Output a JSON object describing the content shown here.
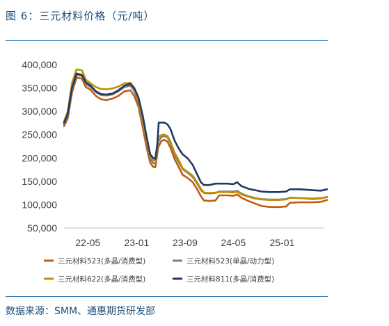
{
  "figure": {
    "title": "图 6：三元材料价格（元/吨）",
    "source": "数据来源：SMM、通惠期货研发部"
  },
  "chart_data": {
    "type": "line",
    "title": "三元材料价格（元/吨）",
    "xlabel": "",
    "ylabel": "",
    "ylim": [
      50000,
      400000
    ],
    "yticks": [
      50000,
      100000,
      150000,
      200000,
      250000,
      300000,
      350000,
      400000
    ],
    "ytick_labels": [
      "50,000",
      "100,000",
      "150,000",
      "200,000",
      "250,000",
      "300,000",
      "350,000",
      "400,000"
    ],
    "x_range": [
      "2022-01",
      "2025-08"
    ],
    "xtick_labels": [
      "22-05",
      "23-01",
      "23-09",
      "24-05",
      "25-01"
    ],
    "xtick_dates": [
      "2022-05",
      "2023-01",
      "2023-09",
      "2024-05",
      "2025-01"
    ],
    "grid": false,
    "legend_position": "bottom",
    "series": [
      {
        "name": "三元材料523(多晶/消费型)",
        "color": "#c55a11",
        "points": [
          [
            "2022-01-01",
            268000
          ],
          [
            "2022-01-20",
            285000
          ],
          [
            "2022-02-10",
            340000
          ],
          [
            "2022-03-05",
            372000
          ],
          [
            "2022-04-01",
            370000
          ],
          [
            "2022-04-20",
            352000
          ],
          [
            "2022-05-15",
            346000
          ],
          [
            "2022-06-10",
            333000
          ],
          [
            "2022-07-05",
            326000
          ],
          [
            "2022-08-01",
            324000
          ],
          [
            "2022-09-01",
            327000
          ],
          [
            "2022-10-01",
            333000
          ],
          [
            "2022-11-01",
            343000
          ],
          [
            "2022-12-01",
            345000
          ],
          [
            "2022-12-20",
            333000
          ],
          [
            "2023-01-10",
            310000
          ],
          [
            "2023-02-01",
            265000
          ],
          [
            "2023-02-20",
            222000
          ],
          [
            "2023-03-10",
            190000
          ],
          [
            "2023-03-25",
            181000
          ],
          [
            "2023-04-05",
            180000
          ],
          [
            "2023-04-20",
            223000
          ],
          [
            "2023-05-05",
            236000
          ],
          [
            "2023-05-20",
            239000
          ],
          [
            "2023-06-05",
            235000
          ],
          [
            "2023-06-20",
            222000
          ],
          [
            "2023-07-10",
            198000
          ],
          [
            "2023-08-01",
            180000
          ],
          [
            "2023-08-20",
            164000
          ],
          [
            "2023-09-15",
            157000
          ],
          [
            "2023-10-10",
            148000
          ],
          [
            "2023-11-01",
            133000
          ],
          [
            "2023-11-20",
            118000
          ],
          [
            "2023-12-05",
            109000
          ],
          [
            "2024-01-01",
            108000
          ],
          [
            "2024-02-01",
            109000
          ],
          [
            "2024-02-20",
            120000
          ],
          [
            "2024-04-01",
            120000
          ],
          [
            "2024-05-01",
            119000
          ],
          [
            "2024-05-20",
            122000
          ],
          [
            "2024-06-10",
            115000
          ],
          [
            "2024-07-15",
            108000
          ],
          [
            "2024-08-20",
            102000
          ],
          [
            "2024-09-20",
            97000
          ],
          [
            "2024-11-01",
            95000
          ],
          [
            "2024-12-15",
            95000
          ],
          [
            "2025-01-20",
            96000
          ],
          [
            "2025-02-10",
            104000
          ],
          [
            "2025-04-01",
            105000
          ],
          [
            "2025-06-01",
            105000
          ],
          [
            "2025-07-15",
            106000
          ],
          [
            "2025-08-15",
            110000
          ]
        ]
      },
      {
        "name": "三元材料523(单晶/动力型)",
        "color": "#7f7f7f",
        "points": [
          [
            "2022-01-01",
            272000
          ],
          [
            "2022-01-20",
            290000
          ],
          [
            "2022-02-10",
            345000
          ],
          [
            "2022-03-05",
            378000
          ],
          [
            "2022-04-01",
            376000
          ],
          [
            "2022-04-20",
            358000
          ],
          [
            "2022-05-15",
            352000
          ],
          [
            "2022-06-10",
            341000
          ],
          [
            "2022-07-05",
            335000
          ],
          [
            "2022-08-01",
            334000
          ],
          [
            "2022-09-01",
            336000
          ],
          [
            "2022-10-01",
            343000
          ],
          [
            "2022-11-01",
            352000
          ],
          [
            "2022-12-01",
            355000
          ],
          [
            "2022-12-20",
            344000
          ],
          [
            "2023-01-10",
            320000
          ],
          [
            "2023-02-01",
            275000
          ],
          [
            "2023-02-20",
            232000
          ],
          [
            "2023-03-10",
            198000
          ],
          [
            "2023-03-25",
            189000
          ],
          [
            "2023-04-05",
            188000
          ],
          [
            "2023-04-20",
            235000
          ],
          [
            "2023-05-05",
            245000
          ],
          [
            "2023-05-20",
            247000
          ],
          [
            "2023-06-05",
            244000
          ],
          [
            "2023-06-20",
            232000
          ],
          [
            "2023-07-10",
            207000
          ],
          [
            "2023-08-01",
            190000
          ],
          [
            "2023-08-20",
            176000
          ],
          [
            "2023-09-15",
            168000
          ],
          [
            "2023-10-10",
            159000
          ],
          [
            "2023-11-01",
            145000
          ],
          [
            "2023-11-20",
            131000
          ],
          [
            "2023-12-05",
            125000
          ],
          [
            "2024-01-01",
            124000
          ],
          [
            "2024-02-01",
            125000
          ],
          [
            "2024-02-20",
            128000
          ],
          [
            "2024-04-01",
            128000
          ],
          [
            "2024-05-01",
            128000
          ],
          [
            "2024-05-20",
            130000
          ],
          [
            "2024-06-10",
            124000
          ],
          [
            "2024-07-15",
            118000
          ],
          [
            "2024-08-20",
            114000
          ],
          [
            "2024-09-20",
            112000
          ],
          [
            "2024-11-01",
            111000
          ],
          [
            "2024-12-15",
            111000
          ],
          [
            "2025-01-20",
            112000
          ],
          [
            "2025-02-10",
            115000
          ],
          [
            "2025-04-01",
            114000
          ],
          [
            "2025-06-01",
            113000
          ],
          [
            "2025-07-15",
            114000
          ],
          [
            "2025-08-15",
            116000
          ]
        ]
      },
      {
        "name": "三元材料622(多晶/消费型)",
        "color": "#bf9000",
        "points": [
          [
            "2022-01-01",
            278000
          ],
          [
            "2022-01-20",
            300000
          ],
          [
            "2022-02-10",
            360000
          ],
          [
            "2022-03-05",
            390000
          ],
          [
            "2022-04-01",
            388000
          ],
          [
            "2022-04-20",
            368000
          ],
          [
            "2022-05-15",
            360000
          ],
          [
            "2022-06-10",
            352000
          ],
          [
            "2022-07-05",
            348000
          ],
          [
            "2022-08-01",
            347000
          ],
          [
            "2022-09-01",
            349000
          ],
          [
            "2022-10-01",
            353000
          ],
          [
            "2022-11-01",
            360000
          ],
          [
            "2022-12-01",
            361000
          ],
          [
            "2022-12-20",
            349000
          ],
          [
            "2023-01-10",
            325000
          ],
          [
            "2023-02-01",
            282000
          ],
          [
            "2023-02-20",
            238000
          ],
          [
            "2023-03-10",
            205000
          ],
          [
            "2023-03-25",
            195000
          ],
          [
            "2023-04-05",
            194000
          ],
          [
            "2023-04-20",
            245000
          ],
          [
            "2023-05-05",
            249000
          ],
          [
            "2023-05-20",
            250000
          ],
          [
            "2023-06-05",
            247000
          ],
          [
            "2023-06-20",
            235000
          ],
          [
            "2023-07-10",
            212000
          ],
          [
            "2023-08-01",
            195000
          ],
          [
            "2023-08-20",
            178000
          ],
          [
            "2023-09-15",
            170000
          ],
          [
            "2023-10-10",
            162000
          ],
          [
            "2023-11-01",
            148000
          ],
          [
            "2023-11-20",
            134000
          ],
          [
            "2023-12-05",
            126000
          ],
          [
            "2024-01-01",
            125000
          ],
          [
            "2024-02-01",
            126000
          ],
          [
            "2024-02-20",
            127000
          ],
          [
            "2024-04-01",
            127000
          ],
          [
            "2024-05-01",
            126000
          ],
          [
            "2024-05-20",
            128000
          ],
          [
            "2024-06-10",
            122000
          ],
          [
            "2024-07-15",
            117000
          ],
          [
            "2024-08-20",
            113000
          ],
          [
            "2024-09-20",
            111000
          ],
          [
            "2024-11-01",
            110000
          ],
          [
            "2024-12-15",
            110000
          ],
          [
            "2025-01-20",
            111000
          ],
          [
            "2025-02-10",
            115000
          ],
          [
            "2025-04-01",
            114000
          ],
          [
            "2025-06-01",
            112000
          ],
          [
            "2025-07-15",
            113000
          ],
          [
            "2025-08-15",
            117000
          ]
        ]
      },
      {
        "name": "三元材料811(多晶/消费型)",
        "color": "#203864",
        "points": [
          [
            "2022-01-01",
            275000
          ],
          [
            "2022-01-20",
            295000
          ],
          [
            "2022-02-10",
            350000
          ],
          [
            "2022-03-05",
            381000
          ],
          [
            "2022-04-01",
            378000
          ],
          [
            "2022-04-20",
            362000
          ],
          [
            "2022-05-15",
            355000
          ],
          [
            "2022-06-10",
            343000
          ],
          [
            "2022-07-05",
            337000
          ],
          [
            "2022-08-01",
            336000
          ],
          [
            "2022-09-01",
            338000
          ],
          [
            "2022-10-01",
            345000
          ],
          [
            "2022-11-01",
            355000
          ],
          [
            "2022-12-01",
            359000
          ],
          [
            "2022-12-20",
            350000
          ],
          [
            "2023-01-10",
            330000
          ],
          [
            "2023-02-01",
            290000
          ],
          [
            "2023-02-20",
            245000
          ],
          [
            "2023-03-10",
            208000
          ],
          [
            "2023-03-25",
            200000
          ],
          [
            "2023-04-05",
            198000
          ],
          [
            "2023-04-15",
            230000
          ],
          [
            "2023-04-22",
            276000
          ],
          [
            "2023-05-20",
            276000
          ],
          [
            "2023-06-05",
            272000
          ],
          [
            "2023-06-20",
            262000
          ],
          [
            "2023-07-10",
            238000
          ],
          [
            "2023-08-01",
            220000
          ],
          [
            "2023-08-20",
            208000
          ],
          [
            "2023-09-15",
            199000
          ],
          [
            "2023-10-10",
            185000
          ],
          [
            "2023-11-01",
            165000
          ],
          [
            "2023-11-20",
            148000
          ],
          [
            "2023-12-05",
            142000
          ],
          [
            "2024-01-01",
            142000
          ],
          [
            "2024-02-01",
            145000
          ],
          [
            "2024-02-20",
            145000
          ],
          [
            "2024-04-01",
            145000
          ],
          [
            "2024-05-01",
            144000
          ],
          [
            "2024-05-20",
            148000
          ],
          [
            "2024-06-10",
            140000
          ],
          [
            "2024-07-15",
            134000
          ],
          [
            "2024-08-20",
            131000
          ],
          [
            "2024-09-20",
            128000
          ],
          [
            "2024-11-01",
            127000
          ],
          [
            "2024-12-15",
            127000
          ],
          [
            "2025-01-20",
            128000
          ],
          [
            "2025-02-10",
            133000
          ],
          [
            "2025-04-01",
            133000
          ],
          [
            "2025-06-01",
            131000
          ],
          [
            "2025-07-15",
            130000
          ],
          [
            "2025-08-15",
            133000
          ]
        ]
      }
    ]
  }
}
